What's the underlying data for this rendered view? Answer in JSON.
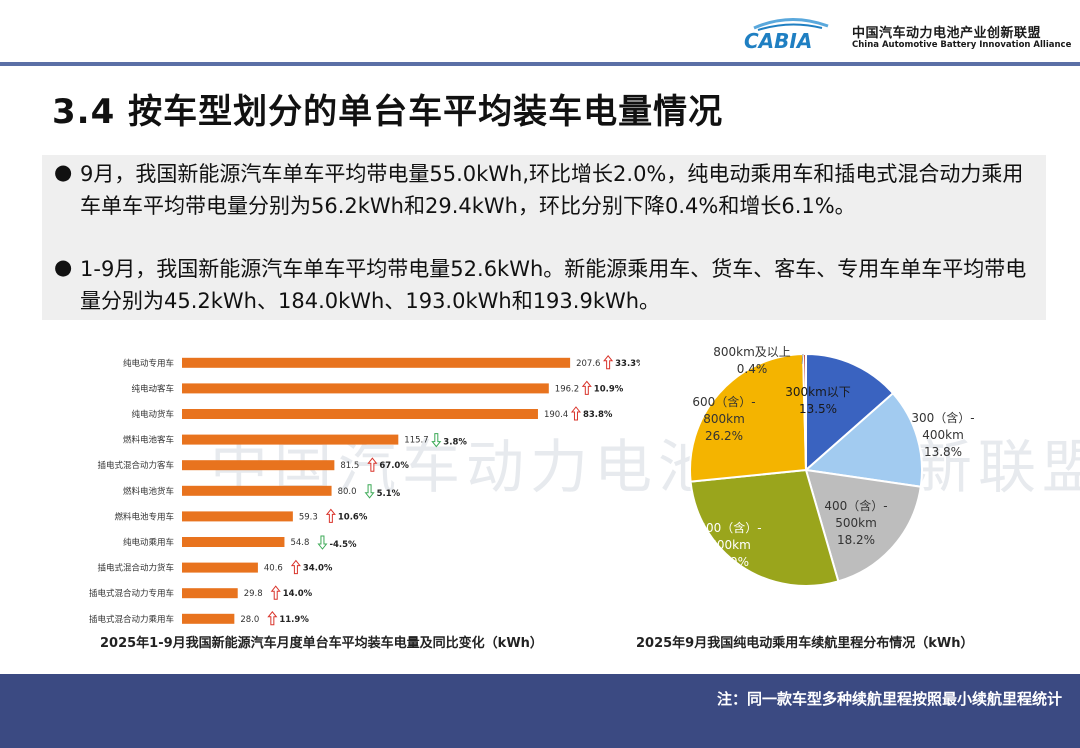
{
  "header": {
    "brand_cn": "中国汽车动力电池产业创新联盟",
    "brand_en": "China Automotive Battery Innovation Alliance",
    "logo_text": "CABIA",
    "accent": "#1f7fc2",
    "line_color": "#5b6fa6"
  },
  "title": "3.4 按车型划分的单台车平均装车电量情况",
  "summary": {
    "p1": "9月，我国新能源汽车单车平均带电量55.0kWh,环比增长2.0%，纯电动乘用车和插电式混合动力乘用车单车平均带电量分别为56.2kWh和29.4kWh，环比分别下降0.4%和增长6.1%。",
    "p2": "1-9月，我国新能源汽车单车平均带电量52.6kWh。新能源乘用车、货车、客车、专用车单车平均带电量分别为45.2kWh、184.0kWh、193.0kWh和193.9kWh。"
  },
  "watermark": "中国汽车动力电池产业创新联盟",
  "chart_data": [
    {
      "type": "bar",
      "orientation": "horizontal",
      "title": "2025年1-9月我国新能源汽车月度单台车平均装车电量及同比变化（kWh）",
      "bar_color": "#e8731e",
      "up_color": "#d9342b",
      "down_color": "#3daa57",
      "categories": [
        "纯电动专用车",
        "纯电动客车",
        "纯电动货车",
        "燃料电池客车",
        "插电式混合动力客车",
        "燃料电池货车",
        "燃料电池专用车",
        "纯电动乘用车",
        "插电式混合动力货车",
        "插电式混合动力专用车",
        "插电式混合动力乘用车"
      ],
      "values": [
        207.6,
        196.2,
        190.4,
        115.7,
        81.5,
        80.0,
        59.3,
        54.8,
        40.6,
        29.8,
        28.0
      ],
      "value_labels": [
        "207.6",
        "196.2",
        "190.4",
        "115.7",
        "81.5",
        "80.0",
        "59.3",
        "54.8",
        "40.6",
        "29.8",
        "28.0"
      ],
      "yoy_labels": [
        "33.3%",
        "10.9%",
        "83.8%",
        "3.8%",
        "67.0%",
        "5.1%",
        "10.6%",
        "-4.5%",
        "34.0%",
        "14.0%",
        "11.9%"
      ],
      "yoy_direction": [
        "up",
        "up",
        "up",
        "down",
        "up",
        "down",
        "up",
        "down",
        "up",
        "up",
        "up"
      ],
      "xlim": [
        0,
        230
      ]
    },
    {
      "type": "pie",
      "title": "2025年9月我国纯电动乘用车续航里程分布情况（kWh）",
      "series": [
        {
          "label_lines": [
            "300km以下",
            "13.5%"
          ],
          "value": 13.5,
          "color": "#3a63c0",
          "text_color": "#1a1a1a"
        },
        {
          "label_lines": [
            "300（含）-",
            "400km",
            "13.8%"
          ],
          "value": 13.8,
          "color": "#a2cbf0",
          "text_color": "#333333"
        },
        {
          "label_lines": [
            "400（含）-",
            "500km",
            "18.2%"
          ],
          "value": 18.2,
          "color": "#bdbdbd",
          "text_color": "#333333"
        },
        {
          "label_lines": [
            "500（含）-",
            "600km",
            "27.9%"
          ],
          "value": 27.9,
          "color": "#9aa51c",
          "text_color": "#ffffff"
        },
        {
          "label_lines": [
            "600（含）-",
            "800km",
            "26.2%"
          ],
          "value": 26.2,
          "color": "#f4b400",
          "text_color": "#333333"
        },
        {
          "label_lines": [
            "800km及以上",
            "0.4%"
          ],
          "value": 0.4,
          "color": "#c0392b",
          "text_color": "#333333"
        }
      ]
    }
  ],
  "footer": {
    "note": "注：同一款车型多种续航里程按照最小续航里程统计",
    "bg": "#3b4a82"
  }
}
